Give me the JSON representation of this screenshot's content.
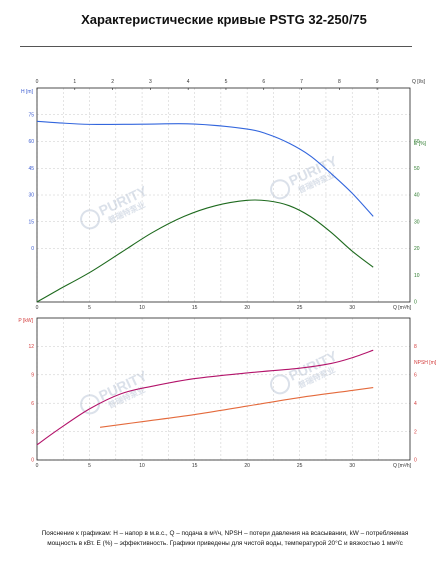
{
  "title": "Характеристические кривые PSTG 32-250/75",
  "footnote_line1": "Пояснение к графикам: H – напор в м.в.с., Q – подача в м³/ч, NPSH – потери давления на всасывании, kW – потребляемая",
  "footnote_line2": "мощность в кВт. Е (%) – эффективность.  Графики приведены для чистой воды, температурой 20°С и вязкостью 1 мм²/с",
  "watermark": {
    "brand": "PURITY",
    "sub": "普瑞特泵业"
  },
  "chart_data": [
    {
      "id": "head-efficiency",
      "type": "line",
      "top_axis": {
        "label": "Q [l/s]",
        "ticks": [
          0,
          1,
          2,
          3,
          4,
          5,
          6,
          7,
          8,
          9
        ],
        "range": [
          0,
          9.87
        ]
      },
      "bottom_axis": {
        "label": "Q [m³/h]",
        "ticks": [
          0,
          5,
          10,
          15,
          20,
          25,
          30
        ],
        "range": [
          0,
          35.5
        ]
      },
      "left_axis": {
        "label": "H [m]",
        "ticks": [
          0,
          15,
          30,
          45,
          60,
          75
        ],
        "range": [
          -30,
          90
        ]
      },
      "right_axis": {
        "label": "E [%]",
        "ticks": [
          0,
          10,
          20,
          30,
          40,
          50,
          60
        ],
        "range": [
          0,
          80
        ]
      },
      "grid": true,
      "series": [
        {
          "axis": "left",
          "color": "#3366dd",
          "points": [
            [
              0,
              71.3
            ],
            [
              2,
              70.5
            ],
            [
              5,
              69.6
            ],
            [
              10,
              69.7
            ],
            [
              15,
              69.8
            ],
            [
              20,
              67
            ],
            [
              22,
              64
            ],
            [
              24,
              59
            ],
            [
              26,
              52
            ],
            [
              28,
              42
            ],
            [
              30,
              31
            ],
            [
              32,
              18
            ]
          ]
        },
        {
          "axis": "right",
          "color": "#1e6a1e",
          "points": [
            [
              0,
              0
            ],
            [
              2,
              4.5
            ],
            [
              5,
              11
            ],
            [
              8,
              18.5
            ],
            [
              11,
              26
            ],
            [
              14,
              32
            ],
            [
              17,
              36
            ],
            [
              20,
              38
            ],
            [
              22,
              37.8
            ],
            [
              24,
              36
            ],
            [
              26,
              32
            ],
            [
              28,
              26
            ],
            [
              30,
              19
            ],
            [
              32,
              13
            ]
          ]
        }
      ]
    },
    {
      "id": "power-npsh",
      "type": "line",
      "bottom_axis": {
        "label": "Q [m³/h]",
        "ticks": [
          0,
          5,
          10,
          15,
          20,
          25,
          30
        ],
        "range": [
          0,
          35.5
        ]
      },
      "left_axis": {
        "label": "P [kW]",
        "ticks": [
          0,
          3,
          6,
          9,
          12
        ],
        "range": [
          0,
          15
        ]
      },
      "right_axis": {
        "label": "NPSH [m]",
        "ticks": [
          0,
          2,
          4,
          6,
          8
        ],
        "range": [
          0,
          10
        ]
      },
      "grid": true,
      "series": [
        {
          "axis": "left",
          "color": "#b3136a",
          "points": [
            [
              0,
              1.6
            ],
            [
              2,
              3.2
            ],
            [
              5,
              5.4
            ],
            [
              8,
              7
            ],
            [
              11,
              7.8
            ],
            [
              15,
              8.6
            ],
            [
              20,
              9.2
            ],
            [
              25,
              9.7
            ],
            [
              28,
              10.2
            ],
            [
              30,
              10.8
            ],
            [
              32,
              11.6
            ]
          ]
        },
        {
          "axis": "right",
          "color": "#e46a3c",
          "points": [
            [
              6,
              2.3
            ],
            [
              10,
              2.7
            ],
            [
              15,
              3.2
            ],
            [
              20,
              3.8
            ],
            [
              25,
              4.4
            ],
            [
              30,
              4.9
            ],
            [
              32,
              5.1
            ]
          ]
        }
      ]
    }
  ]
}
